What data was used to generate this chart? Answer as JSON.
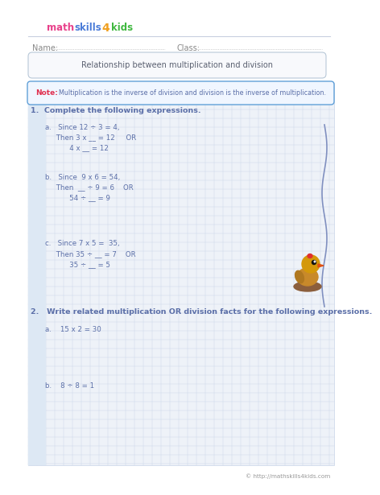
{
  "title": "Relationship between multiplication and division",
  "note_label": "Note:",
  "note_text": "  Multiplication is the inverse of division and division is the inverse of multiplication.",
  "q1_header": "1.  Complete the following expressions.",
  "q1a_line1": "a.   Since 12 ÷ 3 = 4,",
  "q1a_line2": "     Then 3 x __ = 12     OR",
  "q1a_line3": "           4 x __ = 12",
  "q1b_line1": "b.   Since  9 x 6 = 54,",
  "q1b_line2": "     Then  __ ÷ 9 = 6    OR",
  "q1b_line3": "           54 ÷ __ = 9",
  "q1c_line1": "c.   Since 7 x 5 =  35,",
  "q1c_line2": "     Then 35 ÷ __ = 7    OR",
  "q1c_line3": "           35 ÷ __ = 5",
  "q2_header": "2.   Write related multiplication OR division facts for the following expressions.",
  "q2a": "a.    15 x 2 = 30",
  "q2b": "b.    8 ÷ 8 = 1",
  "footer_text": "© http://mathskills4kids.com",
  "grid_color": "#c8d4e8",
  "bg_color": "#eef2f8",
  "white_bg": "#ffffff",
  "text_color_blue": "#5b6fa8",
  "text_color_dark": "#5a6070",
  "note_color": "#e03050",
  "logo_math_color": "#e8408a",
  "logo_skills_color": "#4a7cd8",
  "logo_4_color": "#f0a020",
  "logo_kids_color": "#40b840",
  "separator_color": "#c8d0e0",
  "title_box_border": "#b8c8d8",
  "title_box_fill": "#f8f9fc",
  "note_box_border": "#60a0d8",
  "note_box_fill": "#f0f6ff",
  "left_col_color": "#dde8f4",
  "name_label": "Name:",
  "class_label": "Class:"
}
